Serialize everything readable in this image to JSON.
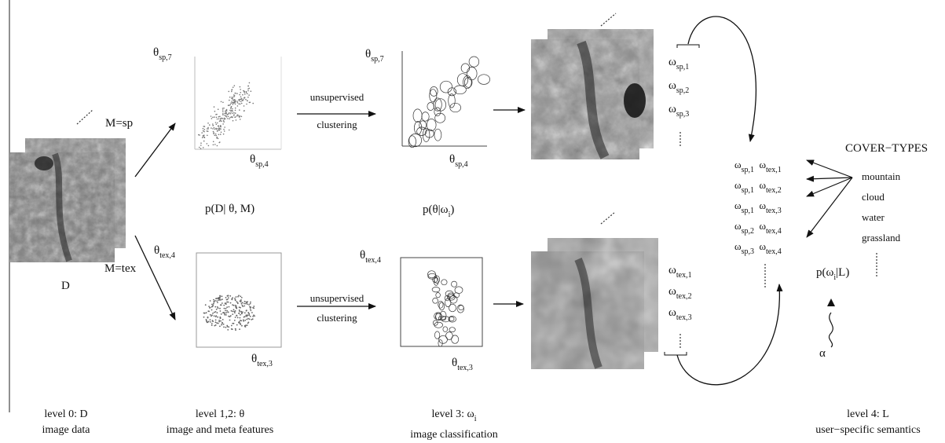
{
  "level0": {
    "symbol": "D",
    "caption_line1": "level 0: D",
    "caption_line2": "image data"
  },
  "models": {
    "sp": "M=sp",
    "tex": "M=tex"
  },
  "level12": {
    "axes_sp": {
      "y_base": "θ",
      "y_sub": "sp,7",
      "x_base": "θ",
      "x_sub": "sp,4"
    },
    "axes_tex": {
      "y_base": "θ",
      "y_sub": "tex,4",
      "x_base": "θ",
      "x_sub": "tex,3"
    },
    "likelihood": "p(D| θ, M)",
    "caption_line1": "level 1,2: θ",
    "caption_line2": "image and meta features"
  },
  "clustering": {
    "line1": "unsupervised",
    "line2": "clustering"
  },
  "level3": {
    "axes_sp": {
      "y_base": "θ",
      "y_sub": "sp,7",
      "x_base": "θ",
      "x_sub": "sp,4"
    },
    "axes_tex": {
      "y_base": "θ",
      "y_sub": "tex,4",
      "x_base": "θ",
      "x_sub": "tex,3"
    },
    "posterior_base": "p(θ|ω",
    "posterior_sub": "i",
    "posterior_close": ")",
    "caption_line1": "level 3: ω",
    "caption_sub": "i",
    "caption_line2": "image classification",
    "classes_sp": [
      {
        "base": "ω",
        "sub": "sp,1"
      },
      {
        "base": "ω",
        "sub": "sp,2"
      },
      {
        "base": "ω",
        "sub": "sp,3"
      }
    ],
    "classes_tex": [
      {
        "base": "ω",
        "sub": "tex,1"
      },
      {
        "base": "ω",
        "sub": "tex,2"
      },
      {
        "base": "ω",
        "sub": "tex,3"
      }
    ]
  },
  "combined": [
    {
      "a": "sp,1",
      "b": "tex,1"
    },
    {
      "a": "sp,1",
      "b": "tex,2"
    },
    {
      "a": "sp,1",
      "b": "tex,3"
    },
    {
      "a": "sp,2",
      "b": "tex,4"
    },
    {
      "a": "sp,3",
      "b": "tex,4"
    }
  ],
  "level4": {
    "heading": "COVER−TYPES",
    "cover_types": [
      "mountain",
      "cloud",
      "water",
      "grassland"
    ],
    "semantic_base": "p(ω",
    "semantic_sub": "i",
    "semantic_close": "|L)",
    "alpha": "α",
    "caption_line1": "level 4: L",
    "caption_line2": "user−specific semantics"
  }
}
